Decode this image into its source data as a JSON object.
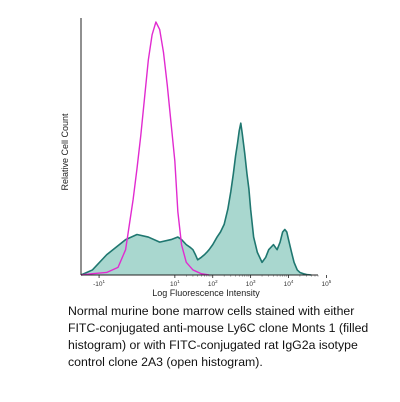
{
  "chart_data": {
    "type": "area",
    "xlabel": "Log Fluorescence Intensity",
    "ylabel": "Relative Cell Count",
    "x_scale": "biexponential",
    "x_ticks": [
      {
        "label": "-10",
        "sup": "1",
        "value": -10
      },
      {
        "label": "10",
        "sup": "1",
        "value": 10
      },
      {
        "label": "10",
        "sup": "2",
        "value": 100
      },
      {
        "label": "10",
        "sup": "3",
        "value": 1000
      },
      {
        "label": "10",
        "sup": "4",
        "value": 10000
      },
      {
        "label": "10",
        "sup": "5",
        "value": 100000
      }
    ],
    "ylim": [
      0,
      100
    ],
    "grid": false,
    "series": [
      {
        "kind": "filled",
        "fill": "#a9d7cf",
        "stroke": "#1f7770",
        "x": [
          -30,
          -15,
          -8,
          -3,
          0,
          3,
          6,
          9,
          12,
          15,
          20,
          25,
          30,
          35,
          40,
          50,
          60,
          70,
          80,
          100,
          130,
          160,
          200,
          250,
          300,
          350,
          400,
          450,
          500,
          550,
          600,
          700,
          800,
          900,
          1000,
          1200,
          1500,
          2000,
          2500,
          3000,
          4000,
          5000,
          6000,
          7000,
          8000,
          9000,
          10000,
          12000,
          14000,
          17000,
          20000,
          25000,
          30000,
          40000
        ],
        "y": [
          0,
          2,
          8,
          14,
          16,
          15,
          13,
          14,
          15,
          14,
          12,
          11,
          10,
          8,
          6,
          7,
          8,
          9,
          10,
          12,
          15,
          17,
          20,
          26,
          33,
          40,
          47,
          52,
          57,
          60,
          56,
          48,
          40,
          34,
          26,
          15,
          9,
          5,
          7,
          10,
          12,
          10,
          13,
          17,
          18,
          17,
          14,
          9,
          5,
          2,
          1,
          0.5,
          0.2,
          0
        ]
      },
      {
        "kind": "open",
        "stroke": "#e12bd0",
        "x": [
          -30,
          -15,
          -8,
          -5,
          -3,
          -1,
          0,
          1,
          2,
          3,
          4,
          5,
          6,
          7,
          8,
          9,
          10,
          12,
          15,
          20,
          30,
          50,
          80
        ],
        "y": [
          0,
          0.5,
          1,
          3,
          10,
          30,
          42,
          55,
          70,
          85,
          95,
          100,
          97,
          88,
          75,
          60,
          45,
          25,
          12,
          5,
          2,
          0.5,
          0
        ]
      }
    ]
  },
  "caption": {
    "text": "Normal murine bone marrow cells stained with either FITC-conjugated anti-mouse Ly6C clone Monts 1 (filled histogram) or with FITC-conjugated rat IgG2a isotype control clone 2A3 (open histogram)."
  }
}
